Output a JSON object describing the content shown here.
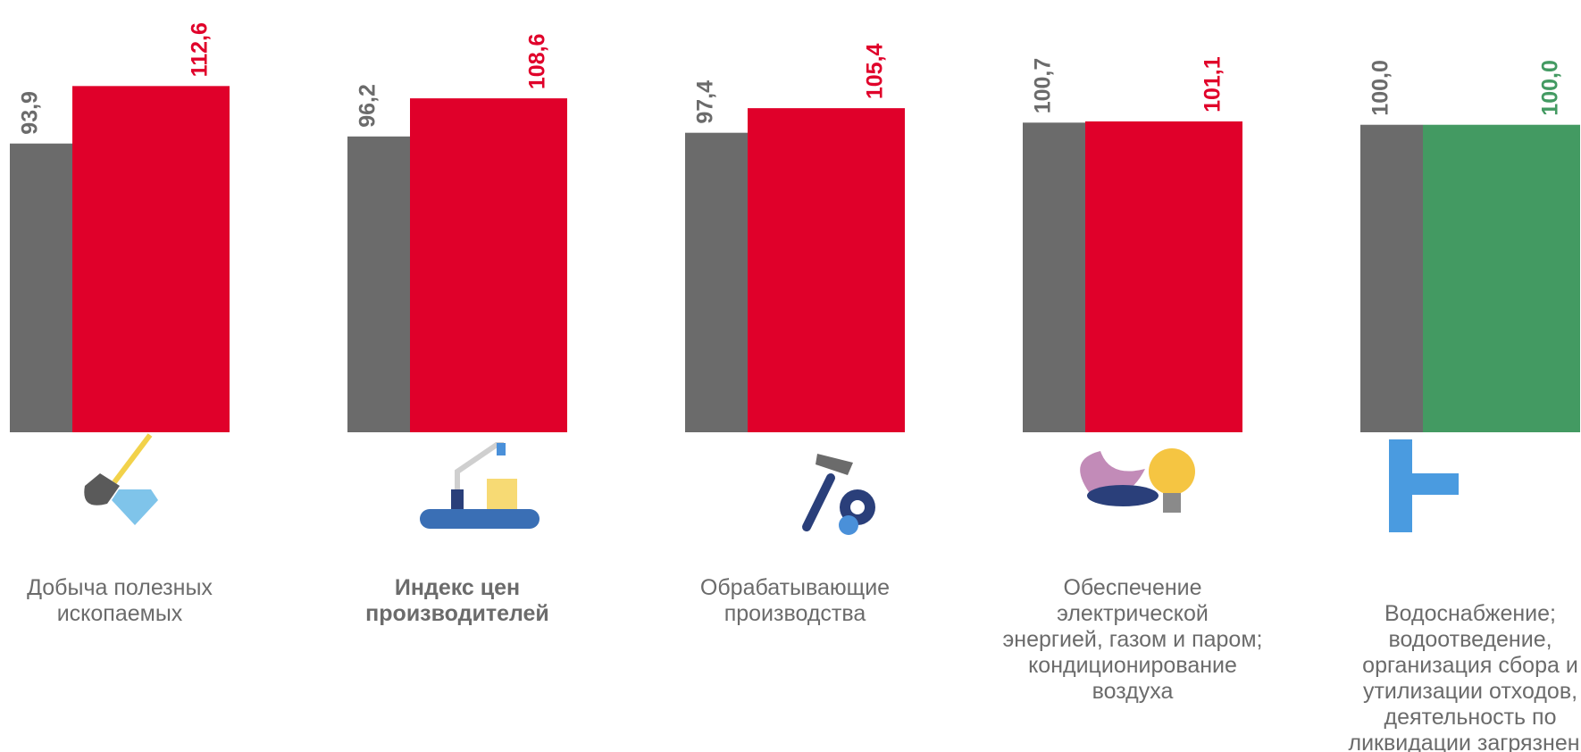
{
  "chart_data": {
    "type": "bar",
    "categories": [
      [
        "Добыча полезных",
        "ископаемых"
      ],
      [
        "Индекс цен",
        "производителей"
      ],
      [
        "Обрабатывающие",
        "производства"
      ],
      [
        "Обеспечение",
        "электрической",
        "энергией, газом и паром;",
        "кондиционирование",
        "воздуха"
      ],
      [
        "Водоснабжение;",
        "водоотведение,",
        "организация сбора и",
        "утилизации отходов,",
        "деятельность по",
        "ликвидации загрязнени"
      ]
    ],
    "highlight_index": 1,
    "series": [
      {
        "color": "#6b6b6b",
        "values": [
          93.9,
          96.2,
          97.4,
          100.7,
          100.0
        ],
        "value_labels": [
          "93,9",
          "96,2",
          "97,4",
          "100,7",
          "100,0"
        ]
      },
      {
        "color": "#e0002a",
        "colors": [
          "#e0002a",
          "#e0002a",
          "#e0002a",
          "#e0002a",
          "#439a62"
        ],
        "values": [
          112.6,
          108.6,
          105.4,
          101.1,
          100.0
        ],
        "value_labels": [
          "112,6",
          "108,6",
          "105,4",
          "101,1",
          "100,0"
        ]
      }
    ],
    "ylim": [
      0,
      140
    ]
  }
}
